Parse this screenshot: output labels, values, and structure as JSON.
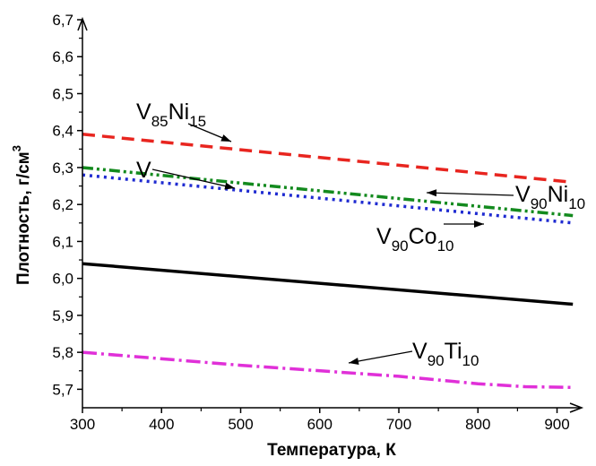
{
  "chart_data": {
    "type": "line",
    "xlabel": "Температура, К",
    "ylabel": "Плотность, г/см",
    "ylabel_sup": "3",
    "xlim": [
      300,
      930
    ],
    "ylim": [
      5.65,
      6.7
    ],
    "x_ticks": [
      "300",
      "400",
      "500",
      "600",
      "700",
      "800",
      "900"
    ],
    "y_ticks": [
      "5,7",
      "5,8",
      "5,9",
      "6,0",
      "6,1",
      "6,2",
      "6,3",
      "6,4",
      "6,5",
      "6,6",
      "6,7"
    ],
    "grid": false,
    "series": [
      {
        "label_base": "V",
        "label_sub1": "85",
        "label_el2": "Ni",
        "label_sub2": "15",
        "color": "#e8251f",
        "style": "dashed",
        "x": [
          300,
          920
        ],
        "y": [
          6.39,
          6.26
        ]
      },
      {
        "label_base": "V",
        "label_sub1": "90",
        "label_el2": "Ni",
        "label_sub2": "10",
        "color": "#138a1e",
        "style": "dash-dot-dot",
        "x": [
          300,
          920
        ],
        "y": [
          6.3,
          6.17
        ]
      },
      {
        "label_base": "V",
        "label_sub1": "90",
        "label_el2": "Co",
        "label_sub2": "10",
        "color": "#1f2bd1",
        "style": "dotted",
        "x": [
          300,
          920
        ],
        "y": [
          6.28,
          6.15
        ]
      },
      {
        "label_base": "V",
        "label_sub1": "",
        "label_el2": "",
        "label_sub2": "",
        "color": "#000000",
        "style": "solid",
        "x": [
          300,
          920
        ],
        "y": [
          6.04,
          5.93
        ]
      },
      {
        "label_base": "V",
        "label_sub1": "90",
        "label_el2": "Ti",
        "label_sub2": "10",
        "color": "#e030d8",
        "style": "dash-dot",
        "x": [
          300,
          500,
          700,
          800,
          860,
          920
        ],
        "y": [
          5.8,
          5.765,
          5.735,
          5.715,
          5.707,
          5.705
        ]
      }
    ]
  }
}
